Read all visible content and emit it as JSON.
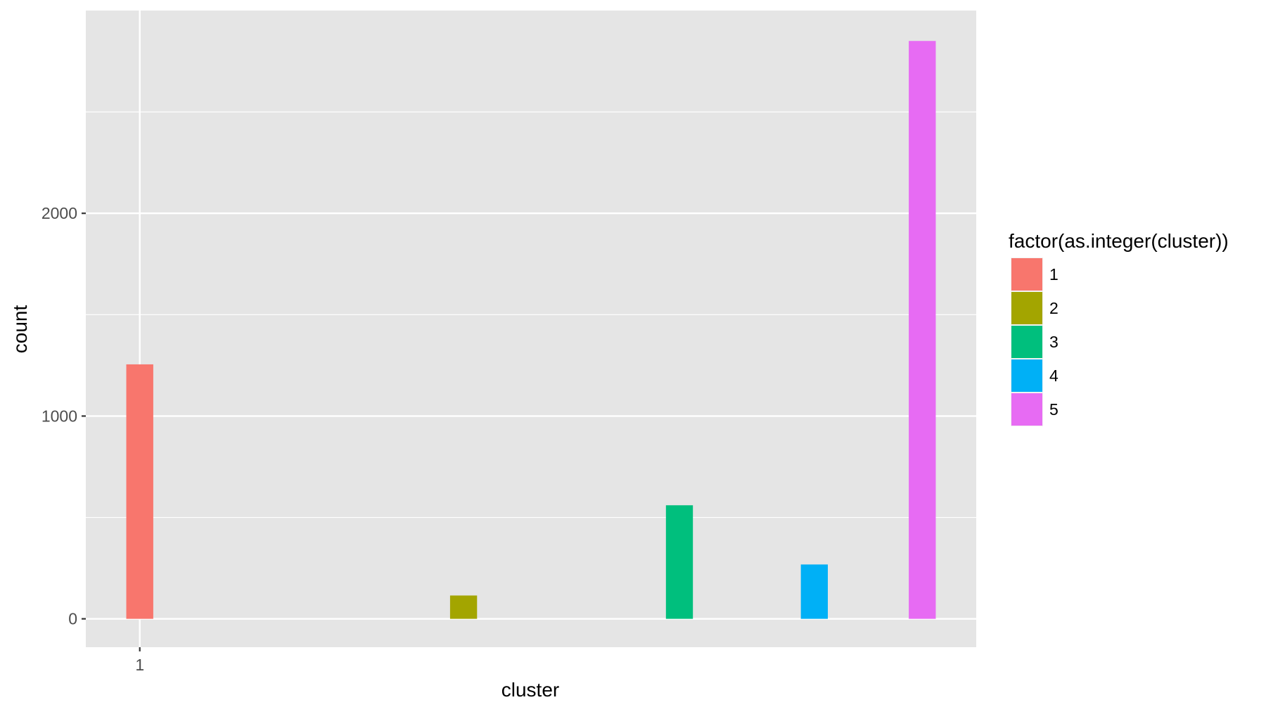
{
  "chart_data": {
    "type": "bar",
    "title": "",
    "xlabel": "cluster",
    "ylabel": "count",
    "x_ticks": [
      "1"
    ],
    "y_ticks": [
      0,
      1000,
      2000
    ],
    "ylim": [
      -140,
      3000
    ],
    "grid": true,
    "legend": {
      "title": "factor(as.integer(cluster))",
      "placement": "right"
    },
    "series": [
      {
        "name": "1",
        "color": "#F8766D",
        "x": 1.0,
        "value": 1255
      },
      {
        "name": "2",
        "color": "#A3A500",
        "x": 3.4,
        "value": 115
      },
      {
        "name": "3",
        "color": "#00BF7D",
        "x": 5.0,
        "value": 560
      },
      {
        "name": "4",
        "color": "#00B0F6",
        "x": 6.0,
        "value": 268
      },
      {
        "name": "5",
        "color": "#E76BF3",
        "x": 6.8,
        "value": 2850
      }
    ],
    "xlim": [
      0.6,
      7.2
    ],
    "bar_width": 0.2,
    "colors": {
      "panel": "#E5E5E5",
      "grid": "#FFFFFF",
      "axis_text": "#4D4D4D",
      "title_text": "#000000"
    }
  }
}
